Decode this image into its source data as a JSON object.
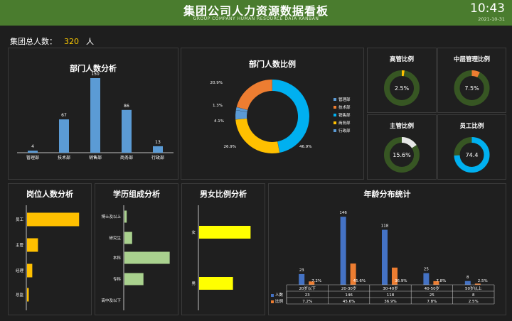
{
  "header": {
    "title": "集团公司人力资源数据看板",
    "subtitle": "GROUP COMPANY HUMAN RESOURCE DATA KANBAN",
    "time": "10:43",
    "date": "2021-10-31"
  },
  "total": {
    "label": "集团总人数：",
    "value": "320",
    "unit": "人"
  },
  "colors": {
    "blue": "#5b9bd5",
    "orange": "#ed7d31",
    "gray": "#a5a5a5",
    "yellow": "#ffc000",
    "ringTrack": "#375623",
    "cyan": "#00b0f0",
    "green": "#a9d18e",
    "brightYellow": "#ffff00",
    "darkBlue": "#4472c4"
  },
  "chart_data": [
    {
      "type": "bar",
      "title": "部门人数分析",
      "categories": [
        "管理部",
        "技术部",
        "销售部",
        "商务部",
        "行政部"
      ],
      "values": [
        4,
        67,
        150,
        86,
        13
      ],
      "ylim": [
        0,
        160
      ]
    },
    {
      "type": "pie",
      "title": "部门人数比例",
      "labels": [
        "管理部",
        "技术部",
        "销售部",
        "商务部",
        "行政部"
      ],
      "values": [
        1.3,
        20.9,
        46.9,
        26.9,
        4.1
      ],
      "value_labels": [
        "1.3%",
        "20.9%",
        "46.9%",
        "26.9%",
        "4.1%"
      ],
      "colors": [
        "#5b9bd5",
        "#ed7d31",
        "#00b0f0",
        "#ffc000",
        "#5b9bd5"
      ],
      "legend_position": "right"
    },
    {
      "type": "pie",
      "title": "高管比例",
      "values": [
        2.5
      ],
      "value_label": "2.5%",
      "color": "#ffc000"
    },
    {
      "type": "pie",
      "title": "中层管理比例",
      "values": [
        7.5
      ],
      "value_label": "7.5%",
      "color": "#ed7d31"
    },
    {
      "type": "pie",
      "title": "主管比例",
      "values": [
        15.6
      ],
      "value_label": "15.6%",
      "color": "#e6e6e6"
    },
    {
      "type": "pie",
      "title": "员工比例",
      "values": [
        74.4
      ],
      "value_label": "74.4",
      "color": "#00b0f0"
    },
    {
      "type": "bar",
      "title": "岗位人数分析",
      "categories": [
        "员工",
        "主管",
        "经理",
        "总监"
      ],
      "values": [
        238,
        50,
        24,
        8
      ],
      "xlim": [
        0,
        260
      ]
    },
    {
      "type": "bar",
      "title": "学历组成分析",
      "categories": [
        "博士及以上",
        "研究生",
        "本科",
        "专科",
        "高中及以下"
      ],
      "values": [
        5,
        17,
        100,
        42,
        0
      ],
      "xlim": [
        0,
        110
      ]
    },
    {
      "type": "bar",
      "title": "男女比例分析",
      "categories": [
        "女",
        "男"
      ],
      "values": [
        193,
        127
      ],
      "xlim": [
        0,
        200
      ]
    },
    {
      "type": "bar",
      "title": "年龄分布统计",
      "categories": [
        "20岁以下",
        "20-30岁",
        "30-40岁",
        "40-50岁",
        "50岁以上"
      ],
      "series": [
        {
          "name": "人数",
          "values": [
            23,
            146,
            118,
            25,
            8
          ]
        },
        {
          "name": "比例",
          "values": [
            7.2,
            45.6,
            36.9,
            7.8,
            2.5
          ]
        }
      ],
      "ratio_labels": [
        "7.2%",
        "45.6%",
        "36.9%",
        "7.8%",
        "2.5%"
      ],
      "ylim": [
        0,
        160
      ]
    }
  ]
}
